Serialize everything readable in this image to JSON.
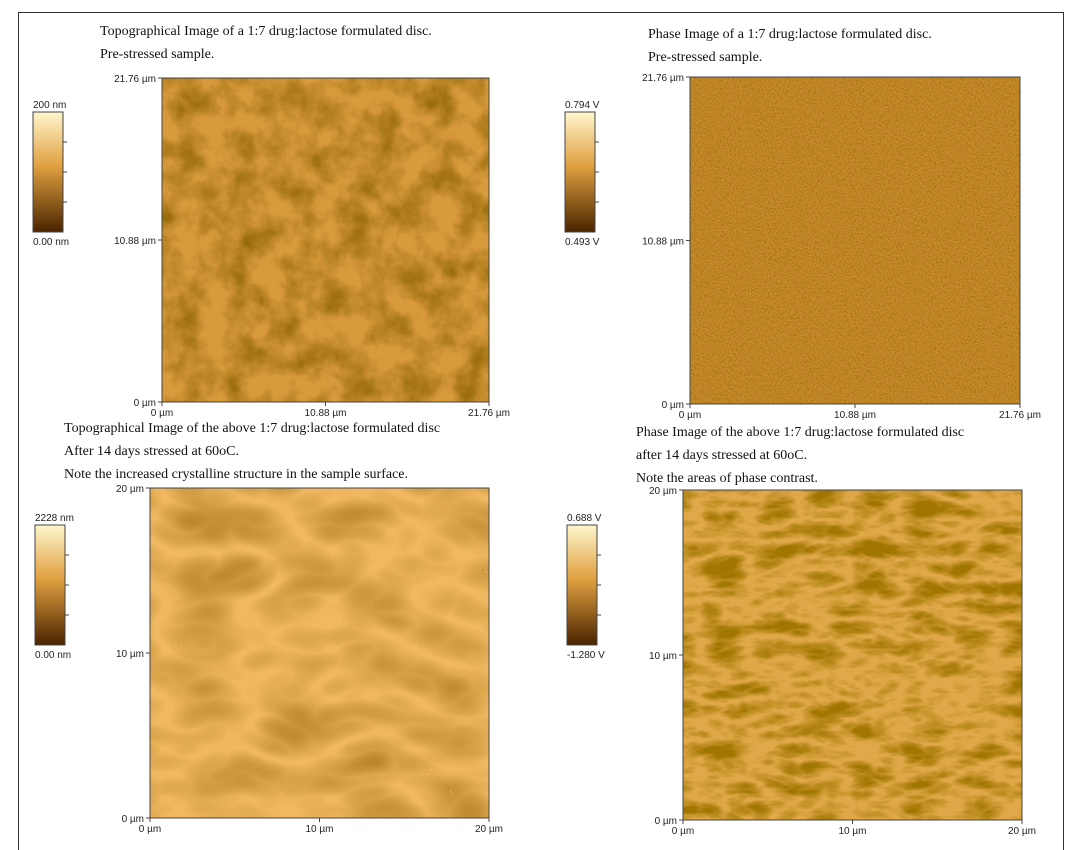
{
  "panels": [
    {
      "caption": [
        "Topographical Image of a 1:7 drug:lactose formulated disc.",
        "Pre-stressed sample."
      ],
      "scale_max": "200 nm",
      "scale_min": "0.00 nm",
      "y_ticks": [
        "21.76 µm",
        "10.88 µm",
        "0 µm"
      ],
      "x_ticks": [
        "0 µm",
        "10.88 µm",
        "21.76 µm"
      ]
    },
    {
      "caption": [
        "Phase Image of a 1:7 drug:lactose formulated disc.",
        "Pre-stressed sample."
      ],
      "scale_max": "0.794 V",
      "scale_min": "0.493 V",
      "y_ticks": [
        "21.76 µm",
        "10.88 µm",
        "0 µm"
      ],
      "x_ticks": [
        "0 µm",
        "10.88 µm",
        "21.76 µm"
      ]
    },
    {
      "caption": [
        "Topographical Image of the above 1:7 drug:lactose formulated disc",
        "After 14 days stressed at 60oC.",
        "Note the increased crystalline structure in the sample surface."
      ],
      "scale_max": "2228 nm",
      "scale_min": "0.00 nm",
      "y_ticks": [
        "20 µm",
        "10 µm",
        "0 µm"
      ],
      "x_ticks": [
        "0 µm",
        "10 µm",
        "20 µm"
      ]
    },
    {
      "caption": [
        "Phase Image of the above 1:7 drug:lactose formulated disc",
        "after 14 days stressed at 60oC.",
        "Note the areas of phase contrast."
      ],
      "scale_max": "0.688 V",
      "scale_min": "-1.280 V",
      "y_ticks": [
        "20 µm",
        "10 µm",
        "0 µm"
      ],
      "x_ticks": [
        "0 µm",
        "10 µm",
        "20 µm"
      ]
    }
  ]
}
